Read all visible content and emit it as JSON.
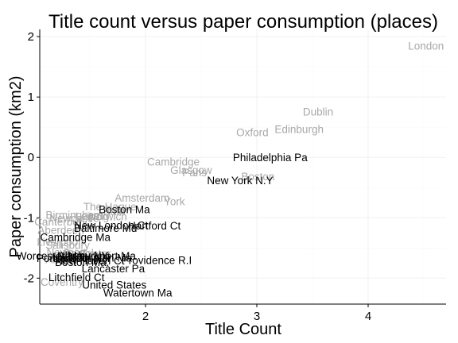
{
  "chart_data": {
    "type": "scatter",
    "title": "Title count versus paper consumption (places)",
    "xlabel": "Title Count",
    "ylabel": "Paper consumption (km2)",
    "xlim": [
      1.05,
      4.7
    ],
    "ylim": [
      -2.43,
      2.12
    ],
    "xticks": [
      2,
      3,
      4
    ],
    "yticks": [
      -2,
      -1,
      0,
      1,
      2
    ],
    "grid": true,
    "colors": {
      "highlight": "#000000",
      "other": "#a8a8a8"
    },
    "points": [
      {
        "label": "London",
        "x": 4.52,
        "y": 1.85,
        "highlight": false
      },
      {
        "label": "Dublin",
        "x": 3.55,
        "y": 0.76,
        "highlight": false
      },
      {
        "label": "Edinburgh",
        "x": 3.38,
        "y": 0.47,
        "highlight": false
      },
      {
        "label": "Oxford",
        "x": 2.96,
        "y": 0.42,
        "highlight": false
      },
      {
        "label": "Philadelphia Pa",
        "x": 3.12,
        "y": 0.0,
        "highlight": true
      },
      {
        "label": "Cambridge",
        "x": 2.25,
        "y": -0.07,
        "highlight": false
      },
      {
        "label": "Glasgow",
        "x": 2.41,
        "y": -0.21,
        "highlight": false
      },
      {
        "label": "Paris",
        "x": 2.44,
        "y": -0.25,
        "highlight": false
      },
      {
        "label": "Boston",
        "x": 3.01,
        "y": -0.31,
        "highlight": false
      },
      {
        "label": "New York N.Y",
        "x": 2.85,
        "y": -0.38,
        "highlight": true
      },
      {
        "label": "Amsterdam",
        "x": 1.97,
        "y": -0.67,
        "highlight": false
      },
      {
        "label": "York",
        "x": 2.26,
        "y": -0.73,
        "highlight": false
      },
      {
        "label": "The Hague",
        "x": 1.68,
        "y": -0.81,
        "highlight": false
      },
      {
        "label": "Boston Ma",
        "x": 1.81,
        "y": -0.86,
        "highlight": true
      },
      {
        "label": "Bath",
        "x": 1.72,
        "y": -0.89,
        "highlight": false
      },
      {
        "label": "Birmingham",
        "x": 1.36,
        "y": -0.95,
        "highlight": false
      },
      {
        "label": "Leipzig",
        "x": 1.52,
        "y": -0.97,
        "highlight": false
      },
      {
        "label": "Norwich",
        "x": 1.66,
        "y": -0.98,
        "highlight": false
      },
      {
        "label": "Newcastle",
        "x": 1.36,
        "y": -1.0,
        "highlight": false
      },
      {
        "label": "Canterbury",
        "x": 1.24,
        "y": -1.06,
        "highlight": false
      },
      {
        "label": "New London Ct",
        "x": 1.69,
        "y": -1.12,
        "highlight": true
      },
      {
        "label": "Hartford Ct",
        "x": 2.08,
        "y": -1.13,
        "highlight": true
      },
      {
        "label": "Baltimore Md",
        "x": 1.64,
        "y": -1.17,
        "highlight": true
      },
      {
        "label": "Aberdeen",
        "x": 1.24,
        "y": -1.2,
        "highlight": false
      },
      {
        "label": "Cambridge Ma",
        "x": 1.37,
        "y": -1.32,
        "highlight": true
      },
      {
        "label": "Liverpool",
        "x": 1.22,
        "y": -1.4,
        "highlight": false
      },
      {
        "label": "Salisbury",
        "x": 1.3,
        "y": -1.45,
        "highlight": false
      },
      {
        "label": "Newport",
        "x": 1.29,
        "y": -1.57,
        "highlight": false
      },
      {
        "label": "Bristol",
        "x": 1.4,
        "y": -1.58,
        "highlight": false
      },
      {
        "label": "Exeter",
        "x": 1.55,
        "y": -1.59,
        "highlight": false
      },
      {
        "label": "Worcester Ma",
        "x": 1.14,
        "y": -1.63,
        "highlight": true
      },
      {
        "label": "Albany NY",
        "x": 1.44,
        "y": -1.62,
        "highlight": true
      },
      {
        "label": "Newburyport Ma",
        "x": 1.56,
        "y": -1.63,
        "highlight": true
      },
      {
        "label": "Portsmouth NH",
        "x": 1.35,
        "y": -1.67,
        "highlight": true
      },
      {
        "label": "Northampton Ma",
        "x": 1.52,
        "y": -1.66,
        "highlight": true
      },
      {
        "label": "Albany",
        "x": 1.25,
        "y": -1.69,
        "highlight": false
      },
      {
        "label": "New Haven Ct",
        "x": 1.5,
        "y": -1.71,
        "highlight": true
      },
      {
        "label": "Boston Ma.",
        "x": 1.43,
        "y": -1.73,
        "highlight": true
      },
      {
        "label": "Providence R.I",
        "x": 2.1,
        "y": -1.7,
        "highlight": true
      },
      {
        "label": "Lancaster Pa",
        "x": 1.71,
        "y": -1.84,
        "highlight": true
      },
      {
        "label": "Litchfield Ct",
        "x": 1.38,
        "y": -1.98,
        "highlight": true
      },
      {
        "label": "Coventry",
        "x": 1.25,
        "y": -2.06,
        "highlight": false
      },
      {
        "label": "United States",
        "x": 1.72,
        "y": -2.11,
        "highlight": true
      },
      {
        "label": "Watertown Ma",
        "x": 1.93,
        "y": -2.24,
        "highlight": true
      }
    ]
  }
}
